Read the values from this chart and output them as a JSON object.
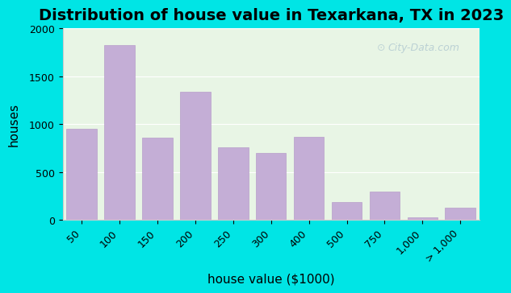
{
  "title": "Distribution of house value in Texarkana, TX in 2023",
  "xlabel": "house value ($1000)",
  "ylabel": "houses",
  "bar_labels": [
    "50",
    "100",
    "150",
    "200",
    "250",
    "300",
    "400",
    "500",
    "750",
    "1,000",
    "> 1,000"
  ],
  "bar_values": [
    950,
    1830,
    860,
    1340,
    760,
    700,
    870,
    185,
    300,
    30,
    125
  ],
  "bar_color": "#c4aed6",
  "bar_edge_color": "#b89eca",
  "ylim": [
    0,
    2000
  ],
  "yticks": [
    0,
    500,
    1000,
    1500,
    2000
  ],
  "bg_outer": "#00e5e5",
  "bg_plot": "#e8f5e5",
  "watermark_text": "City-Data.com",
  "title_fontsize": 14,
  "axis_label_fontsize": 11,
  "tick_fontsize": 9
}
